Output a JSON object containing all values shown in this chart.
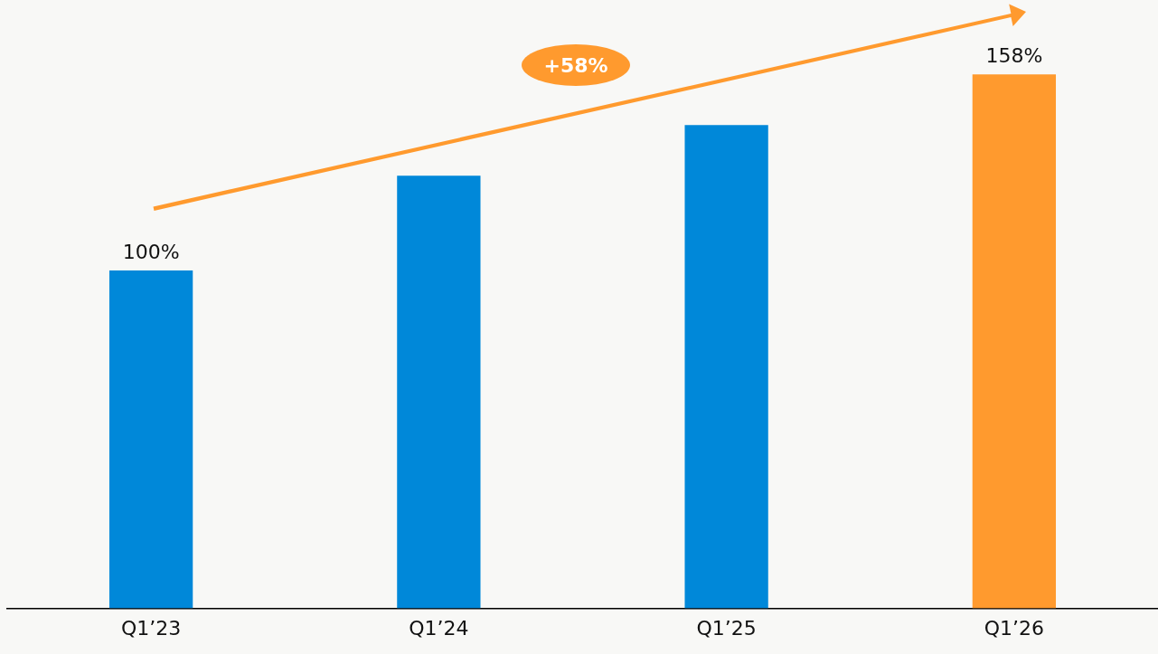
{
  "chart_data": {
    "type": "bar",
    "categories": [
      "Q1’23",
      "Q1’24",
      "Q1’25",
      "Q1’26"
    ],
    "values": [
      100,
      128,
      143,
      158
    ],
    "colors": [
      "#0088d9",
      "#0088d9",
      "#0088d9",
      "#ff9a2e"
    ],
    "value_labels": [
      "100%",
      null,
      null,
      "158%"
    ],
    "annotations": [
      "+58%"
    ],
    "grid": false,
    "legend": false
  }
}
